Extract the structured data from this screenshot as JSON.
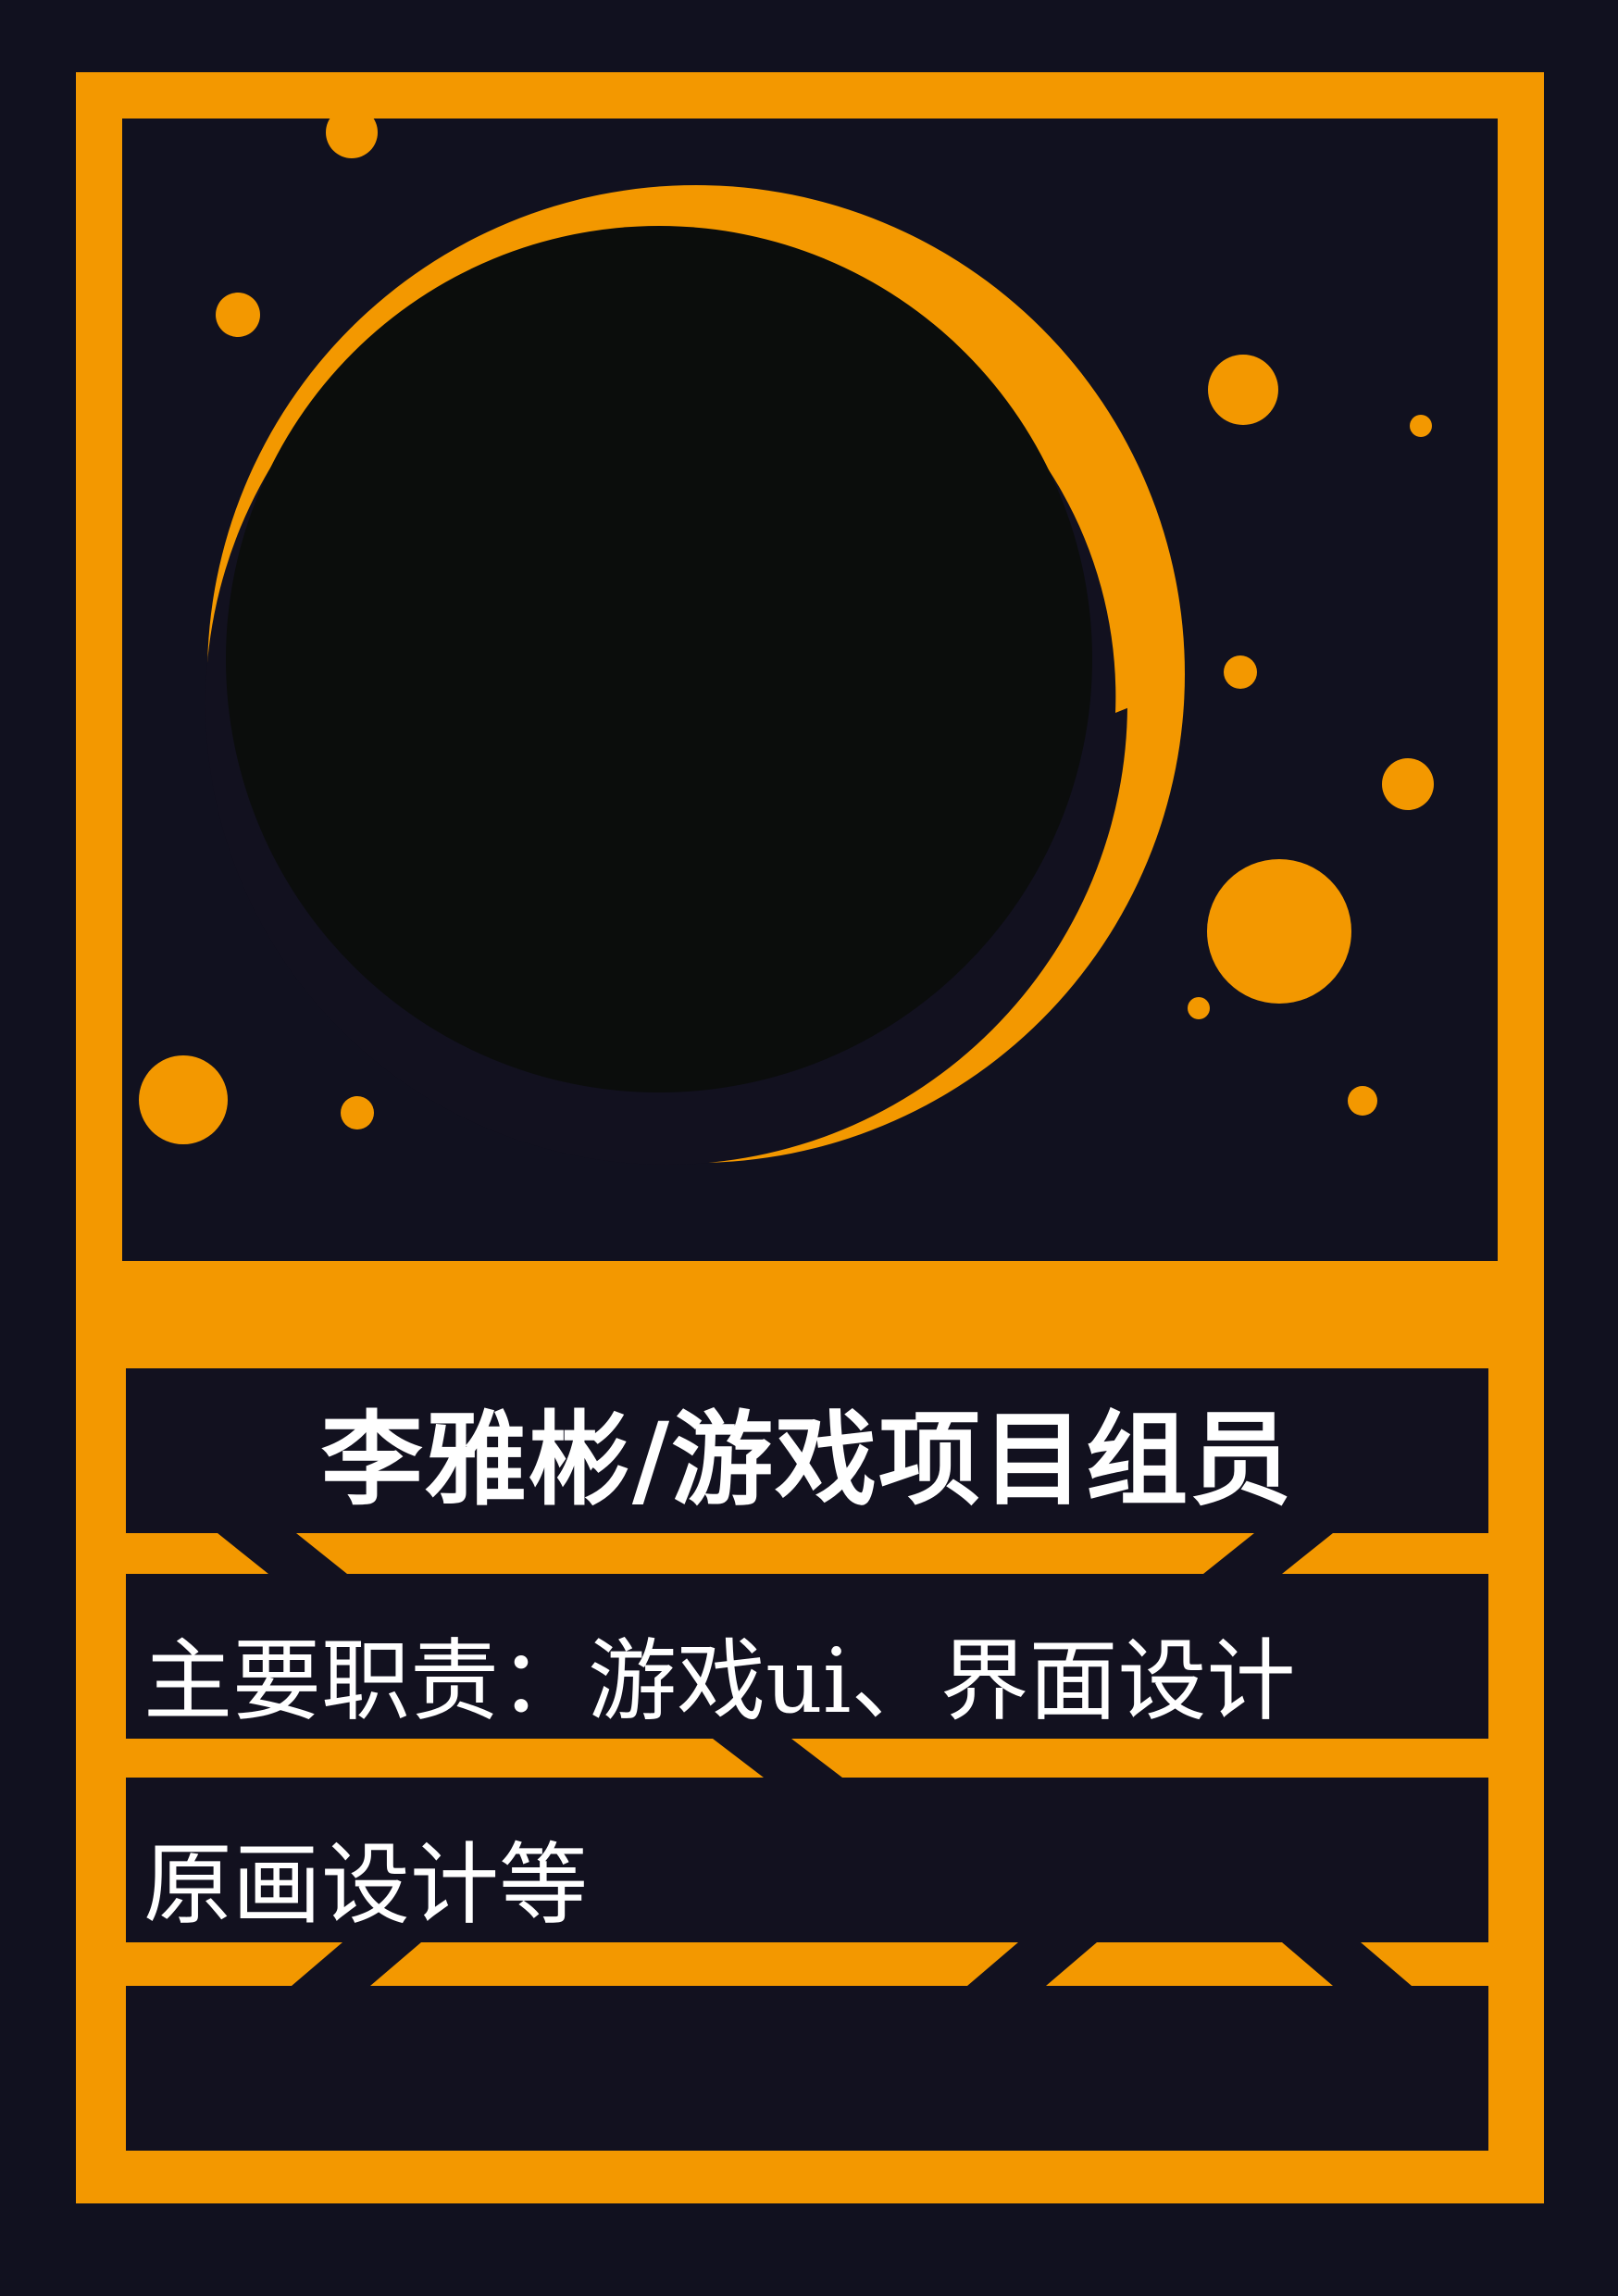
{
  "card": {
    "title": "李雅彬/游戏项目组员",
    "line1": "主要职责：游戏ui、界面设计",
    "line2": "原画设计等"
  },
  "colors": {
    "background": "#11111f",
    "accent": "#f39800",
    "panel": "#12111f",
    "portrait": "#0b0d0c",
    "text": "#ffffff"
  }
}
